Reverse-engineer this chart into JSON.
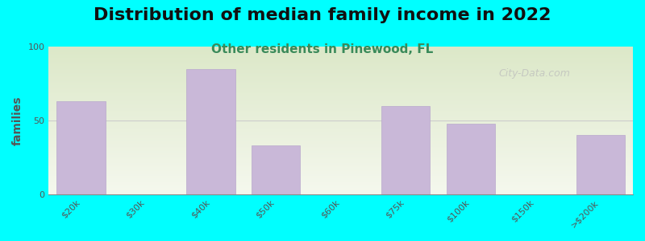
{
  "title": "Distribution of median family income in 2022",
  "subtitle": "Other residents in Pinewood, FL",
  "ylabel": "families",
  "categories": [
    "$20k",
    "$30k",
    "$40k",
    "$50k",
    "$60k",
    "$75k",
    "$100k",
    "$150k",
    ">$200k"
  ],
  "values": [
    63,
    0,
    85,
    33,
    0,
    60,
    48,
    0,
    40
  ],
  "bar_color": "#c9b8d8",
  "bar_edge_color": "#b8a8cc",
  "background_outer": "#00ffff",
  "background_inner_top": "#dce8c8",
  "background_inner_bottom": "#f5f8ee",
  "title_fontsize": 16,
  "subtitle_fontsize": 11,
  "subtitle_color": "#3a8a5a",
  "ylabel_color": "#555555",
  "tick_color": "#555555",
  "ylim": [
    0,
    100
  ],
  "yticks": [
    0,
    50,
    100
  ],
  "watermark": "City-Data.com"
}
